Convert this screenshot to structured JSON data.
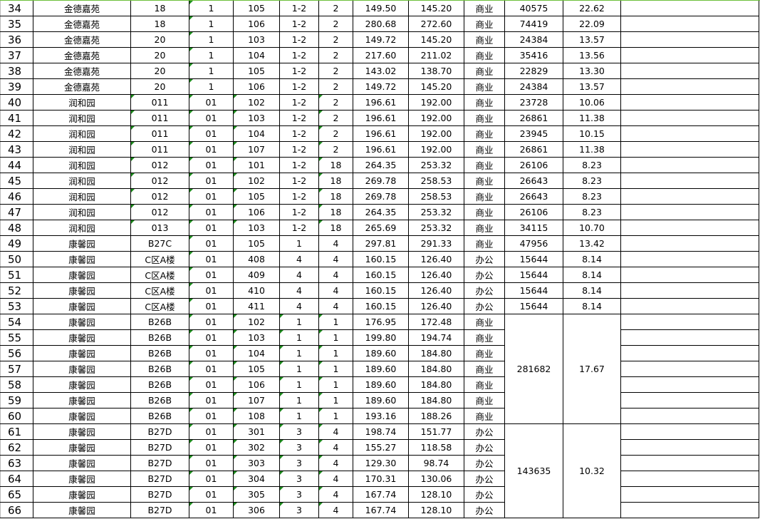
{
  "sheet": {
    "accent_color": "#6cbf3a",
    "rows": [
      {
        "n": "34",
        "c": [
          "金德嘉苑",
          "18",
          "1",
          "105",
          "1-2",
          "2",
          "149.50",
          "145.20",
          "商业",
          "40575",
          "22.62"
        ]
      },
      {
        "n": "35",
        "c": [
          "金德嘉苑",
          "18",
          "1",
          "106",
          "1-2",
          "2",
          "280.68",
          "272.60",
          "商业",
          "74419",
          "22.09"
        ]
      },
      {
        "n": "36",
        "c": [
          "金德嘉苑",
          "20",
          "1",
          "103",
          "1-2",
          "2",
          "149.72",
          "145.20",
          "商业",
          "24384",
          "13.57"
        ]
      },
      {
        "n": "37",
        "c": [
          "金德嘉苑",
          "20",
          "1",
          "104",
          "1-2",
          "2",
          "217.60",
          "211.02",
          "商业",
          "35416",
          "13.56"
        ]
      },
      {
        "n": "38",
        "c": [
          "金德嘉苑",
          "20",
          "1",
          "105",
          "1-2",
          "2",
          "143.02",
          "138.70",
          "商业",
          "22829",
          "13.30"
        ]
      },
      {
        "n": "39",
        "c": [
          "金德嘉苑",
          "20",
          "1",
          "106",
          "1-2",
          "2",
          "149.72",
          "145.20",
          "商业",
          "24384",
          "13.57"
        ]
      },
      {
        "n": "40",
        "c": [
          "润和园",
          "011",
          "01",
          "102",
          "1-2",
          "2",
          "196.61",
          "192.00",
          "商业",
          "23728",
          "10.06"
        ]
      },
      {
        "n": "41",
        "c": [
          "润和园",
          "011",
          "01",
          "103",
          "1-2",
          "2",
          "196.61",
          "192.00",
          "商业",
          "26861",
          "11.38"
        ]
      },
      {
        "n": "42",
        "c": [
          "润和园",
          "011",
          "01",
          "104",
          "1-2",
          "2",
          "196.61",
          "192.00",
          "商业",
          "23945",
          "10.15"
        ]
      },
      {
        "n": "43",
        "c": [
          "润和园",
          "011",
          "01",
          "107",
          "1-2",
          "2",
          "196.61",
          "192.00",
          "商业",
          "26861",
          "11.38"
        ]
      },
      {
        "n": "44",
        "c": [
          "润和园",
          "012",
          "01",
          "101",
          "1-2",
          "18",
          "264.35",
          "253.32",
          "商业",
          "26106",
          "8.23"
        ]
      },
      {
        "n": "45",
        "c": [
          "润和园",
          "012",
          "01",
          "102",
          "1-2",
          "18",
          "269.78",
          "258.53",
          "商业",
          "26643",
          "8.23"
        ]
      },
      {
        "n": "46",
        "c": [
          "润和园",
          "012",
          "01",
          "105",
          "1-2",
          "18",
          "269.78",
          "258.53",
          "商业",
          "26643",
          "8.23"
        ]
      },
      {
        "n": "47",
        "c": [
          "润和园",
          "012",
          "01",
          "106",
          "1-2",
          "18",
          "264.35",
          "253.32",
          "商业",
          "26106",
          "8.23"
        ]
      },
      {
        "n": "48",
        "c": [
          "润和园",
          "013",
          "01",
          "103",
          "1-2",
          "18",
          "265.69",
          "253.32",
          "商业",
          "34115",
          "10.70"
        ]
      },
      {
        "n": "49",
        "c": [
          "康馨园",
          "B27C",
          "01",
          "105",
          "1",
          "4",
          "297.81",
          "291.33",
          "商业",
          "47956",
          "13.42"
        ]
      },
      {
        "n": "50",
        "c": [
          "康馨园",
          "C区A楼",
          "01",
          "408",
          "4",
          "4",
          "160.15",
          "126.40",
          "办公",
          "15644",
          "8.14"
        ]
      },
      {
        "n": "51",
        "c": [
          "康馨园",
          "C区A楼",
          "01",
          "409",
          "4",
          "4",
          "160.15",
          "126.40",
          "办公",
          "15644",
          "8.14"
        ]
      },
      {
        "n": "52",
        "c": [
          "康馨园",
          "C区A楼",
          "01",
          "410",
          "4",
          "4",
          "160.15",
          "126.40",
          "办公",
          "15644",
          "8.14"
        ]
      },
      {
        "n": "53",
        "c": [
          "康馨园",
          "C区A楼",
          "01",
          "411",
          "4",
          "4",
          "160.15",
          "126.40",
          "办公",
          "15644",
          "8.14"
        ]
      },
      {
        "n": "54",
        "c": [
          "康馨园",
          "B26B",
          "01",
          "102",
          "1",
          "1",
          "176.95",
          "172.48",
          "商业"
        ],
        "merge": {
          "span": 7,
          "total": "281682",
          "price": "17.67"
        }
      },
      {
        "n": "55",
        "c": [
          "康馨园",
          "B26B",
          "01",
          "103",
          "1",
          "1",
          "199.80",
          "194.74",
          "商业"
        ]
      },
      {
        "n": "56",
        "c": [
          "康馨园",
          "B26B",
          "01",
          "104",
          "1",
          "1",
          "189.60",
          "184.80",
          "商业"
        ]
      },
      {
        "n": "57",
        "c": [
          "康馨园",
          "B26B",
          "01",
          "105",
          "1",
          "1",
          "189.60",
          "184.80",
          "商业"
        ]
      },
      {
        "n": "58",
        "c": [
          "康馨园",
          "B26B",
          "01",
          "106",
          "1",
          "1",
          "189.60",
          "184.80",
          "商业"
        ]
      },
      {
        "n": "59",
        "c": [
          "康馨园",
          "B26B",
          "01",
          "107",
          "1",
          "1",
          "189.60",
          "184.80",
          "商业"
        ]
      },
      {
        "n": "60",
        "c": [
          "康馨园",
          "B26B",
          "01",
          "108",
          "1",
          "1",
          "193.16",
          "188.26",
          "商业"
        ]
      },
      {
        "n": "61",
        "c": [
          "康馨园",
          "B27D",
          "01",
          "301",
          "3",
          "4",
          "198.74",
          "151.77",
          "办公"
        ],
        "merge": {
          "span": 6,
          "total": "143635",
          "price": "10.32"
        }
      },
      {
        "n": "62",
        "c": [
          "康馨园",
          "B27D",
          "01",
          "302",
          "3",
          "4",
          "155.27",
          "118.58",
          "办公"
        ]
      },
      {
        "n": "63",
        "c": [
          "康馨园",
          "B27D",
          "01",
          "303",
          "3",
          "4",
          "129.30",
          "98.74",
          "办公"
        ]
      },
      {
        "n": "64",
        "c": [
          "康馨园",
          "B27D",
          "01",
          "304",
          "3",
          "4",
          "170.31",
          "130.06",
          "办公"
        ]
      },
      {
        "n": "65",
        "c": [
          "康馨园",
          "B27D",
          "01",
          "305",
          "3",
          "4",
          "167.74",
          "128.10",
          "办公"
        ]
      },
      {
        "n": "66",
        "c": [
          "康馨园",
          "B27D",
          "01",
          "306",
          "3",
          "4",
          "167.74",
          "128.10",
          "办公"
        ]
      }
    ]
  }
}
